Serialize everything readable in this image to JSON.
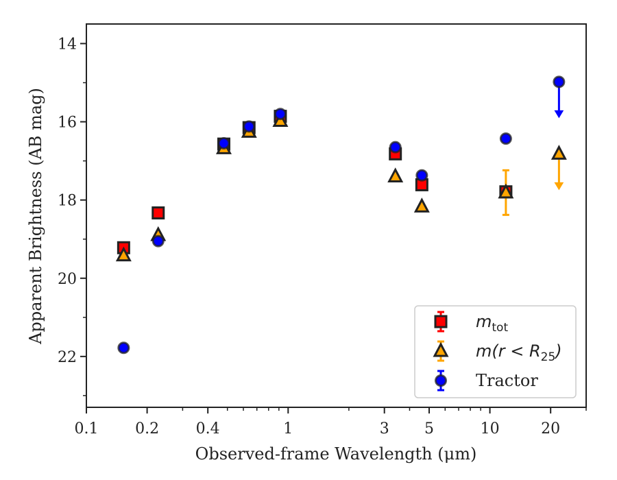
{
  "chart_data": {
    "type": "scatter",
    "xlabel": "Observed-frame Wavelength (μm)",
    "ylabel": "Apparent Brightness (AB mag)",
    "x_scale": "log",
    "y_inverted": true,
    "xlim": [
      0.1,
      30
    ],
    "ylim": [
      23.3,
      13.5
    ],
    "xticks": [
      {
        "value": 0.1,
        "label": "0.1"
      },
      {
        "value": 0.2,
        "label": "0.2"
      },
      {
        "value": 0.4,
        "label": "0.4"
      },
      {
        "value": 1,
        "label": "1"
      },
      {
        "value": 3,
        "label": "3"
      },
      {
        "value": 5,
        "label": "5"
      },
      {
        "value": 10,
        "label": "10"
      },
      {
        "value": 20,
        "label": "20"
      }
    ],
    "yticks": [
      {
        "value": 14,
        "label": "14"
      },
      {
        "value": 16,
        "label": "16"
      },
      {
        "value": 18,
        "label": "18"
      },
      {
        "value": 20,
        "label": "20"
      },
      {
        "value": 22,
        "label": "22"
      }
    ],
    "grid": false,
    "legend_position": "lower-right",
    "legend": [
      {
        "series": "m_tot",
        "base": "m",
        "sub": "tot",
        "tail": ""
      },
      {
        "series": "m_r25",
        "base": "m(r < R",
        "sub": "25",
        "tail": ")"
      },
      {
        "series": "tractor",
        "base": "Tractor",
        "sub": "",
        "tail": ""
      }
    ],
    "series": [
      {
        "id": "m_tot",
        "marker": "square",
        "color": "#ff0000",
        "points": [
          {
            "x": 0.153,
            "y": 19.22
          },
          {
            "x": 0.227,
            "y": 18.33
          },
          {
            "x": 0.48,
            "y": 16.57
          },
          {
            "x": 0.64,
            "y": 16.15
          },
          {
            "x": 0.915,
            "y": 15.86
          },
          {
            "x": 3.4,
            "y": 16.82
          },
          {
            "x": 4.6,
            "y": 17.61
          },
          {
            "x": 12.0,
            "y": 17.79,
            "yerr": 0.1
          }
        ]
      },
      {
        "id": "m_r25",
        "marker": "triangle",
        "color": "#ffa500",
        "points": [
          {
            "x": 0.153,
            "y": 19.42
          },
          {
            "x": 0.227,
            "y": 18.9
          },
          {
            "x": 0.48,
            "y": 16.68
          },
          {
            "x": 0.64,
            "y": 16.26
          },
          {
            "x": 0.915,
            "y": 15.98
          },
          {
            "x": 3.4,
            "y": 17.4
          },
          {
            "x": 4.6,
            "y": 18.17
          },
          {
            "x": 12.0,
            "y": 17.81,
            "yerr": 0.57
          },
          {
            "x": 22.0,
            "y": 16.82,
            "upper_limit": true
          }
        ]
      },
      {
        "id": "tractor",
        "marker": "circle",
        "color": "#0000ff",
        "points": [
          {
            "x": 0.153,
            "y": 21.78
          },
          {
            "x": 0.227,
            "y": 19.05
          },
          {
            "x": 0.48,
            "y": 16.55
          },
          {
            "x": 0.64,
            "y": 16.12
          },
          {
            "x": 0.915,
            "y": 15.8
          },
          {
            "x": 3.4,
            "y": 16.65
          },
          {
            "x": 4.6,
            "y": 17.37
          },
          {
            "x": 12.0,
            "y": 16.43
          },
          {
            "x": 22.0,
            "y": 14.98,
            "upper_limit": true
          }
        ]
      }
    ]
  }
}
